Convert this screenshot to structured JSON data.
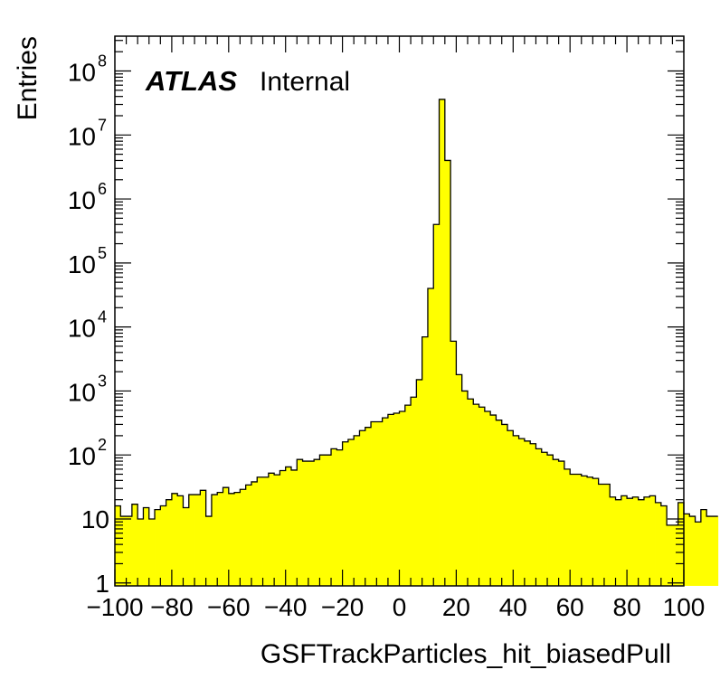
{
  "chart_data": {
    "type": "bar",
    "xlabel": "GSFTrackParticles_hit_biasedPull",
    "ylabel": "Entries",
    "annotation": {
      "bold": "ATLAS",
      "normal": "Internal"
    },
    "xlim": [
      -100,
      100
    ],
    "ylim": [
      0.9,
      350000000
    ],
    "y_scale": "log",
    "fill_color": "#ffff00",
    "line_color": "#000000",
    "x_ticks": [
      "−100",
      "−80",
      "−60",
      "−40",
      "−20",
      "0",
      "20",
      "40",
      "60",
      "80",
      "100"
    ],
    "y_ticks": [
      {
        "base": "1",
        "exp": ""
      },
      {
        "base": "10",
        "exp": ""
      },
      {
        "base": "10",
        "exp": "2"
      },
      {
        "base": "10",
        "exp": "3"
      },
      {
        "base": "10",
        "exp": "4"
      },
      {
        "base": "10",
        "exp": "5"
      },
      {
        "base": "10",
        "exp": "6"
      },
      {
        "base": "10",
        "exp": "7"
      },
      {
        "base": "10",
        "exp": "8"
      }
    ],
    "bin_width": 2,
    "values": [
      16,
      11,
      11,
      17,
      10,
      15,
      10,
      14,
      16,
      20,
      25,
      23,
      15,
      24,
      24,
      28,
      11,
      24,
      26,
      31,
      25,
      26,
      29,
      34,
      38,
      45,
      45,
      52,
      49,
      57,
      65,
      58,
      85,
      80,
      80,
      85,
      100,
      100,
      125,
      120,
      160,
      175,
      200,
      240,
      270,
      330,
      330,
      380,
      430,
      450,
      480,
      600,
      800,
      1500,
      7000,
      40000,
      400000,
      36000000,
      4000000,
      6000,
      1800,
      1000,
      750,
      620,
      560,
      480,
      420,
      350,
      300,
      240,
      200,
      180,
      165,
      150,
      125,
      110,
      100,
      85,
      80,
      60,
      50,
      50,
      47,
      45,
      43,
      35,
      35,
      22,
      20,
      23,
      21,
      22,
      20,
      22,
      23,
      18,
      16,
      8,
      8,
      18,
      12,
      11,
      9,
      14,
      11,
      11
    ]
  }
}
